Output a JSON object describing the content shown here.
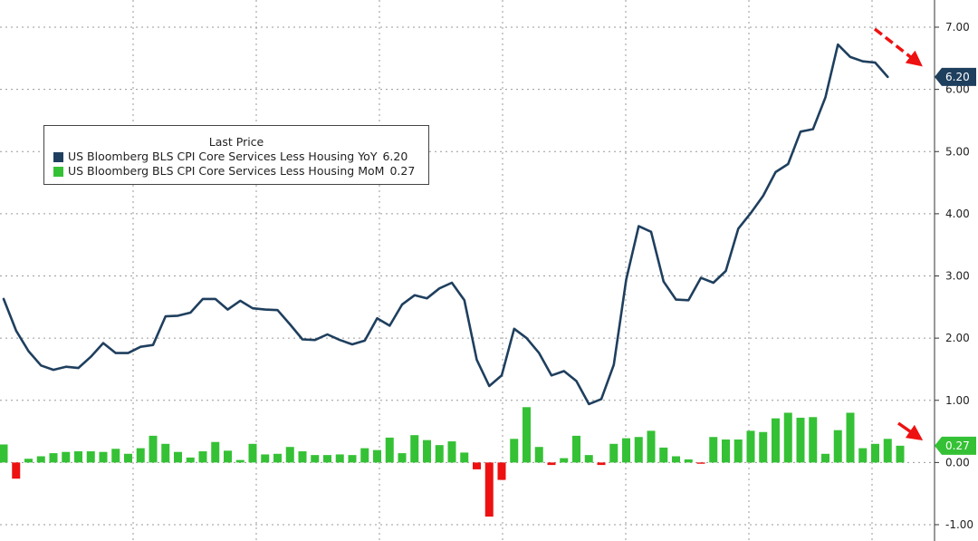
{
  "chart_data": {
    "type": "bar+line",
    "title": "",
    "xlabel": "",
    "ylabel": "",
    "ylim": [
      -1.0,
      7.0
    ],
    "y_ticks": [
      "7.00",
      "6.00",
      "5.00",
      "4.00",
      "3.00",
      "2.00",
      "1.00",
      "0.00",
      "-1.00"
    ],
    "y_axis_position": "right",
    "grid": true,
    "legend": {
      "title": "Last Price",
      "placement": "top-left",
      "entries": [
        {
          "name": "US Bloomberg BLS CPI Core Services Less Housing YoY",
          "value": "6.20",
          "color": "#1f3f5e"
        },
        {
          "name": "US Bloomberg BLS CPI Core Services Less Housing MoM",
          "value": "0.27",
          "color": "#35c135"
        }
      ]
    },
    "series": [
      {
        "name": "US Bloomberg BLS CPI Core Services Less Housing YoY",
        "type": "line",
        "color": "#1f3f5e",
        "last_label": "6.20",
        "values": [
          2.63,
          2.12,
          1.79,
          1.56,
          1.49,
          1.54,
          1.52,
          1.7,
          1.92,
          1.76,
          1.76,
          1.86,
          1.89,
          2.35,
          2.36,
          2.41,
          2.63,
          2.63,
          2.46,
          2.6,
          2.48,
          2.46,
          2.45,
          2.22,
          1.98,
          1.97,
          2.06,
          1.97,
          1.9,
          1.96,
          2.32,
          2.2,
          2.54,
          2.69,
          2.64,
          2.8,
          2.89,
          2.61,
          1.65,
          1.23,
          1.4,
          2.15,
          2.0,
          1.76,
          1.4,
          1.47,
          1.31,
          0.94,
          1.02,
          1.57,
          2.94,
          3.8,
          3.71,
          2.91,
          2.62,
          2.61,
          2.97,
          2.89,
          3.08,
          3.76,
          4.01,
          4.29,
          4.67,
          4.8,
          5.32,
          5.36,
          5.87,
          6.72,
          6.52,
          6.45,
          6.43,
          6.2
        ]
      },
      {
        "name": "US Bloomberg BLS CPI Core Services Less Housing MoM",
        "type": "bar",
        "color": "#35c135",
        "negative_color": "#ee1111",
        "last_label": "0.27",
        "values": [
          0.29,
          -0.26,
          0.06,
          0.1,
          0.15,
          0.17,
          0.18,
          0.18,
          0.17,
          0.22,
          0.14,
          0.23,
          0.43,
          0.3,
          0.17,
          0.08,
          0.18,
          0.33,
          0.19,
          0.04,
          0.3,
          0.13,
          0.14,
          0.25,
          0.18,
          0.12,
          0.12,
          0.13,
          0.12,
          0.23,
          0.2,
          0.4,
          0.15,
          0.44,
          0.36,
          0.28,
          0.34,
          0.16,
          -0.11,
          -0.87,
          -0.28,
          0.38,
          0.89,
          0.25,
          -0.04,
          0.07,
          0.43,
          0.12,
          -0.04,
          0.3,
          0.39,
          0.41,
          0.51,
          0.24,
          0.1,
          0.05,
          -0.02,
          0.41,
          0.37,
          0.37,
          0.51,
          0.49,
          0.71,
          0.8,
          0.72,
          0.73,
          0.14,
          0.52,
          0.8,
          0.23,
          0.3,
          0.38,
          0.27
        ]
      }
    ]
  }
}
